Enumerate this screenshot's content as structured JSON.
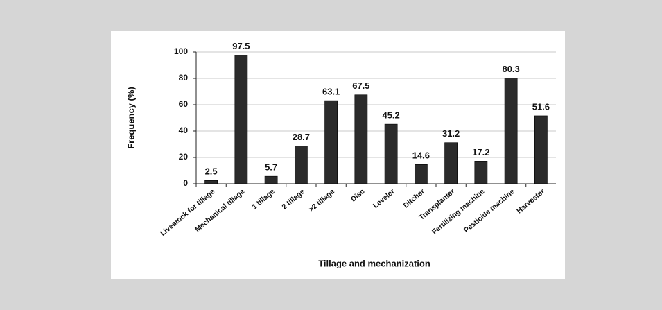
{
  "chart_data": {
    "type": "bar",
    "categories": [
      "Livestock for tillage",
      "Mechanical tillage",
      "1 tillage",
      "2 tillage",
      ">2 tillage",
      "Disc",
      "Leveler",
      "Ditcher",
      "Transplanter",
      "Fertilizing machine",
      "Pesticide machine",
      "Harvester"
    ],
    "values": [
      2.5,
      97.5,
      5.7,
      28.7,
      63.1,
      67.5,
      45.2,
      14.6,
      31.2,
      17.2,
      80.3,
      51.6
    ],
    "color": "#2b2b2b",
    "y_label": "Frequency (%)",
    "x_label": "Tillage and mechanization",
    "ylim": [
      0,
      100
    ],
    "yticks": [
      0,
      20,
      40,
      60,
      80,
      100
    ],
    "grid": true
  }
}
